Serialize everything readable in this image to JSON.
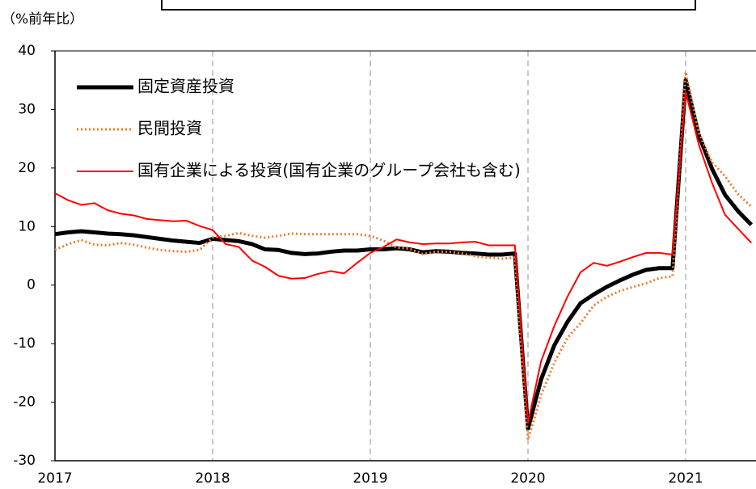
{
  "chart_data": {
    "type": "line",
    "y_label": "（%前年比）",
    "categories": [
      "2017",
      null,
      null,
      null,
      null,
      null,
      null,
      null,
      null,
      null,
      null,
      null,
      "2018",
      null,
      null,
      null,
      null,
      null,
      null,
      null,
      null,
      null,
      null,
      null,
      "2019",
      null,
      null,
      null,
      null,
      null,
      null,
      null,
      null,
      null,
      null,
      null,
      "2020",
      null,
      null,
      null,
      null,
      null,
      null,
      null,
      null,
      null,
      null,
      null,
      "2021",
      null,
      null,
      null,
      null,
      null
    ],
    "series": [
      {
        "name": "固定資産投資",
        "color": "#000000",
        "style": "thick",
        "values": [
          8.7,
          9.0,
          9.2,
          9.0,
          8.8,
          8.7,
          8.5,
          8.2,
          7.9,
          7.6,
          7.4,
          7.2,
          7.9,
          7.7,
          7.5,
          7.0,
          6.1,
          6.0,
          5.5,
          5.3,
          5.4,
          5.7,
          5.9,
          5.9,
          6.1,
          6.1,
          6.3,
          6.1,
          5.6,
          5.8,
          5.7,
          5.5,
          5.4,
          5.2,
          5.2,
          5.4,
          -24.5,
          -16.1,
          -10.3,
          -6.3,
          -3.1,
          -1.6,
          -0.3,
          0.8,
          1.8,
          2.6,
          2.9,
          2.9,
          35.0,
          25.6,
          19.9,
          15.4,
          12.6,
          10.3
        ]
      },
      {
        "name": "民間投資",
        "color": "#ed7d31",
        "style": "dotted",
        "values": [
          6.0,
          7.0,
          7.7,
          6.9,
          6.8,
          7.2,
          6.9,
          6.4,
          6.0,
          5.8,
          5.7,
          6.0,
          8.1,
          8.4,
          8.9,
          8.4,
          8.1,
          8.4,
          8.8,
          8.7,
          8.7,
          8.7,
          8.7,
          8.7,
          8.4,
          7.6,
          6.4,
          6.2,
          5.3,
          5.7,
          5.7,
          5.4,
          4.9,
          4.7,
          4.5,
          4.7,
          -26.4,
          -18.8,
          -13.3,
          -9.0,
          -6.5,
          -3.5,
          -2.0,
          -1.0,
          -0.3,
          0.3,
          1.2,
          1.5,
          36.4,
          26.0,
          21.0,
          18.6,
          15.5,
          13.4
        ]
      },
      {
        "name": "国有企業による投資(国有企業のグループ会社も含む)",
        "color": "#ff0000",
        "style": "solid",
        "values": [
          15.7,
          14.5,
          13.7,
          14.0,
          12.8,
          12.2,
          11.9,
          11.3,
          11.1,
          10.9,
          11.0,
          10.1,
          9.4,
          7.0,
          6.5,
          4.2,
          3.1,
          1.6,
          1.1,
          1.2,
          1.9,
          2.4,
          2.0,
          3.8,
          5.5,
          6.5,
          7.8,
          7.3,
          7.0,
          7.1,
          7.1,
          7.3,
          7.4,
          6.8,
          6.8,
          6.8,
          -23.5,
          -13.0,
          -7.0,
          -2.0,
          2.2,
          3.8,
          3.3,
          4.0,
          4.8,
          5.5,
          5.5,
          5.2,
          33.0,
          24.0,
          17.5,
          12.0,
          9.6,
          7.2
        ]
      }
    ],
    "ylim": [
      -30,
      40
    ],
    "yticks": [
      -30,
      -20,
      -10,
      0,
      10,
      20,
      30,
      40
    ],
    "grid": "x",
    "legend": "upper left"
  }
}
